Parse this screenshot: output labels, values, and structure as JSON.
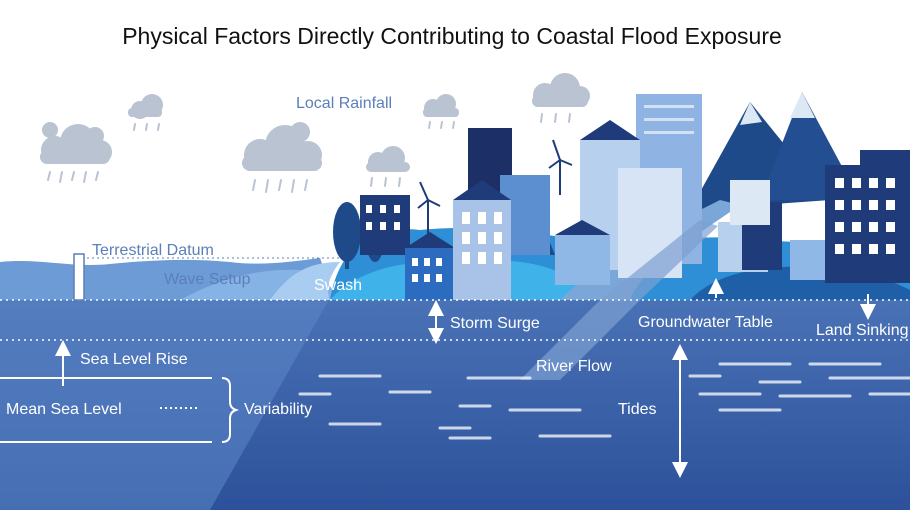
{
  "title": "Physical Factors Directly Contributing to Coastal Flood Exposure",
  "labels": {
    "local_rainfall": "Local Rainfall",
    "terrestrial_datum": "Terrestrial Datum",
    "wave_setup": "Wave Setup",
    "swash": "Swash",
    "storm_surge": "Storm Surge",
    "groundwater_table": "Groundwater Table",
    "land_sinking": "Land Sinking",
    "sea_level_rise": "Sea Level Rise",
    "mean_sea_level": "Mean Sea Level",
    "variability": "Variability",
    "river_flow": "River Flow",
    "tides": "Tides"
  }
}
